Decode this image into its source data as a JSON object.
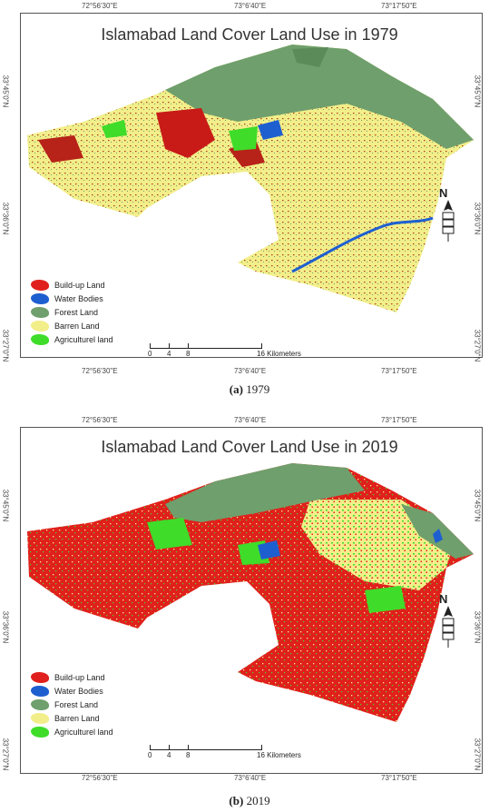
{
  "panels": [
    {
      "title": "Islamabad Land Cover Land Use in 1979",
      "caption_letter": "(a)",
      "caption_text": "1979",
      "top_ticks": [
        "72°56'30\"E",
        "73°6'40\"E",
        "73°17'50\"E"
      ],
      "bottom_ticks": [
        "72°56'30\"E",
        "73°6'40\"E",
        "73°17'50\"E"
      ],
      "left_ticks": [
        "33°45'0\"N",
        "33°36'0\"N",
        "33°27'0\"N"
      ],
      "right_ticks": [
        "33°45'0\"N",
        "33°36'0\"N",
        "33°27'0\"N"
      ],
      "scale": {
        "labels": [
          "0",
          "4",
          "8",
          "16 Kilometers"
        ]
      },
      "north": "N"
    },
    {
      "title": "Islamabad Land Cover Land Use in 2019",
      "caption_letter": "(b)",
      "caption_text": "2019",
      "top_ticks": [
        "72°56'30\"E",
        "73°6'40\"E",
        "73°17'50\"E"
      ],
      "bottom_ticks": [
        "72°56'30\"E",
        "73°6'40\"E",
        "73°17'50\"E"
      ],
      "left_ticks": [
        "33°45'0\"N",
        "33°36'0\"N",
        "33°27'0\"N"
      ],
      "right_ticks": [
        "33°45'0\"N",
        "33°36'0\"N",
        "33°27'0\"N"
      ],
      "scale": {
        "labels": [
          "0",
          "4",
          "8",
          "16 Kilometers"
        ]
      },
      "north": "N"
    }
  ],
  "legend": [
    {
      "label": "Build-up Land",
      "color": "#e0201c"
    },
    {
      "label": "Water Bodies",
      "color": "#1e5fd0"
    },
    {
      "label": "Forest Land",
      "color": "#6f9f6c"
    },
    {
      "label": "Barren Land",
      "color": "#f2ee8a"
    },
    {
      "label": "Agriculturel land",
      "color": "#3fdc2a"
    }
  ],
  "colors": {
    "buildup": "#e0201c",
    "water": "#1e5fd0",
    "forest": "#6f9f6c",
    "barren": "#f2ee8a",
    "agri": "#3fdc2a"
  }
}
